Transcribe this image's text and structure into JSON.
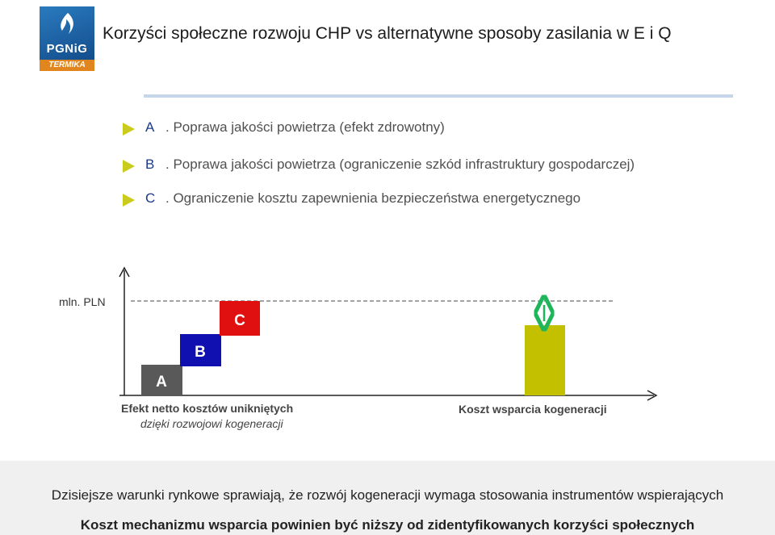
{
  "logo": {
    "brand": "PGNiG",
    "sub": "TERMIKA"
  },
  "title": "Korzyści społeczne rozwoju CHP vs alternatywne sposoby zasilania w E i Q",
  "bullets": [
    {
      "letter": "A",
      "text": ". Poprawa jakości powietrza (efekt zdrowotny)"
    },
    {
      "letter": "B",
      "text": ". Poprawa jakości powietrza (ograniczenie szkód infrastruktury gospodarczej)"
    },
    {
      "letter": "C",
      "text": ". Ograniczenie kosztu zapewnienia bezpieczeństwa energetycznego"
    }
  ],
  "chart_data": {
    "type": "bar",
    "ylabel": "mln. PLN",
    "colors": {
      "A": "#595959",
      "B": "#1010b0",
      "C": "#e01010",
      "support": "#c3c000",
      "arrow": "#1fb55a"
    },
    "blocks": [
      {
        "label": "A",
        "color": "#595959"
      },
      {
        "label": "B",
        "color": "#1010b0"
      },
      {
        "label": "C",
        "color": "#e01010"
      }
    ],
    "categories": [
      {
        "line1": "Efekt netto kosztów unikniętych",
        "line2": "dzięki rozwojowi kogeneracji"
      },
      {
        "line1": "Koszt wsparcia kogeneracji"
      }
    ]
  },
  "footer": {
    "line1": "Dzisiejsze warunki rynkowe sprawiają, że rozwój kogeneracji wymaga stosowania instrumentów wspierających",
    "line2": "Koszt mechanizmu wsparcia powinien być niższy od zidentyfikowanych korzyści społecznych"
  }
}
